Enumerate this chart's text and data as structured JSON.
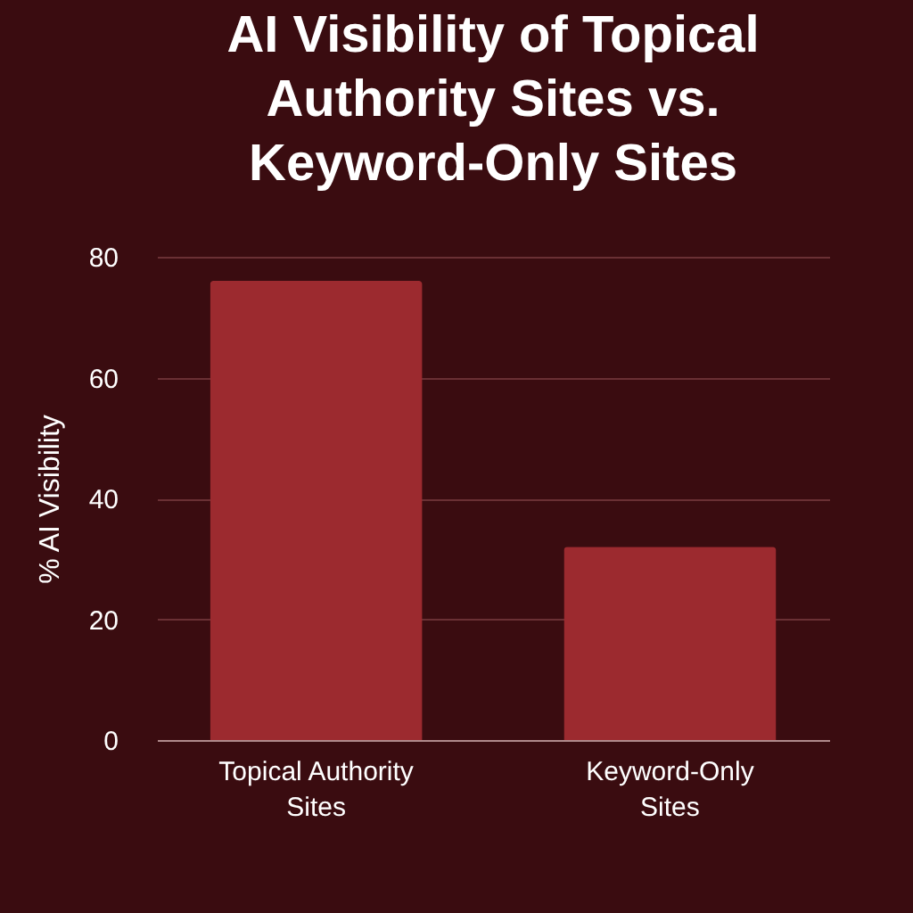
{
  "chart_data": {
    "type": "bar",
    "title": "AI Visibility of Topical Authority Sites vs. Keyword-Only Sites",
    "ylabel": "% AI Visibility",
    "categories": [
      "Topical Authority Sites",
      "Keyword-Only Sites"
    ],
    "values": [
      76,
      32
    ],
    "color": "#9c2a2f",
    "ylim": [
      0,
      80
    ],
    "yticks": [
      0,
      20,
      40,
      60,
      80
    ],
    "grid": "y"
  }
}
